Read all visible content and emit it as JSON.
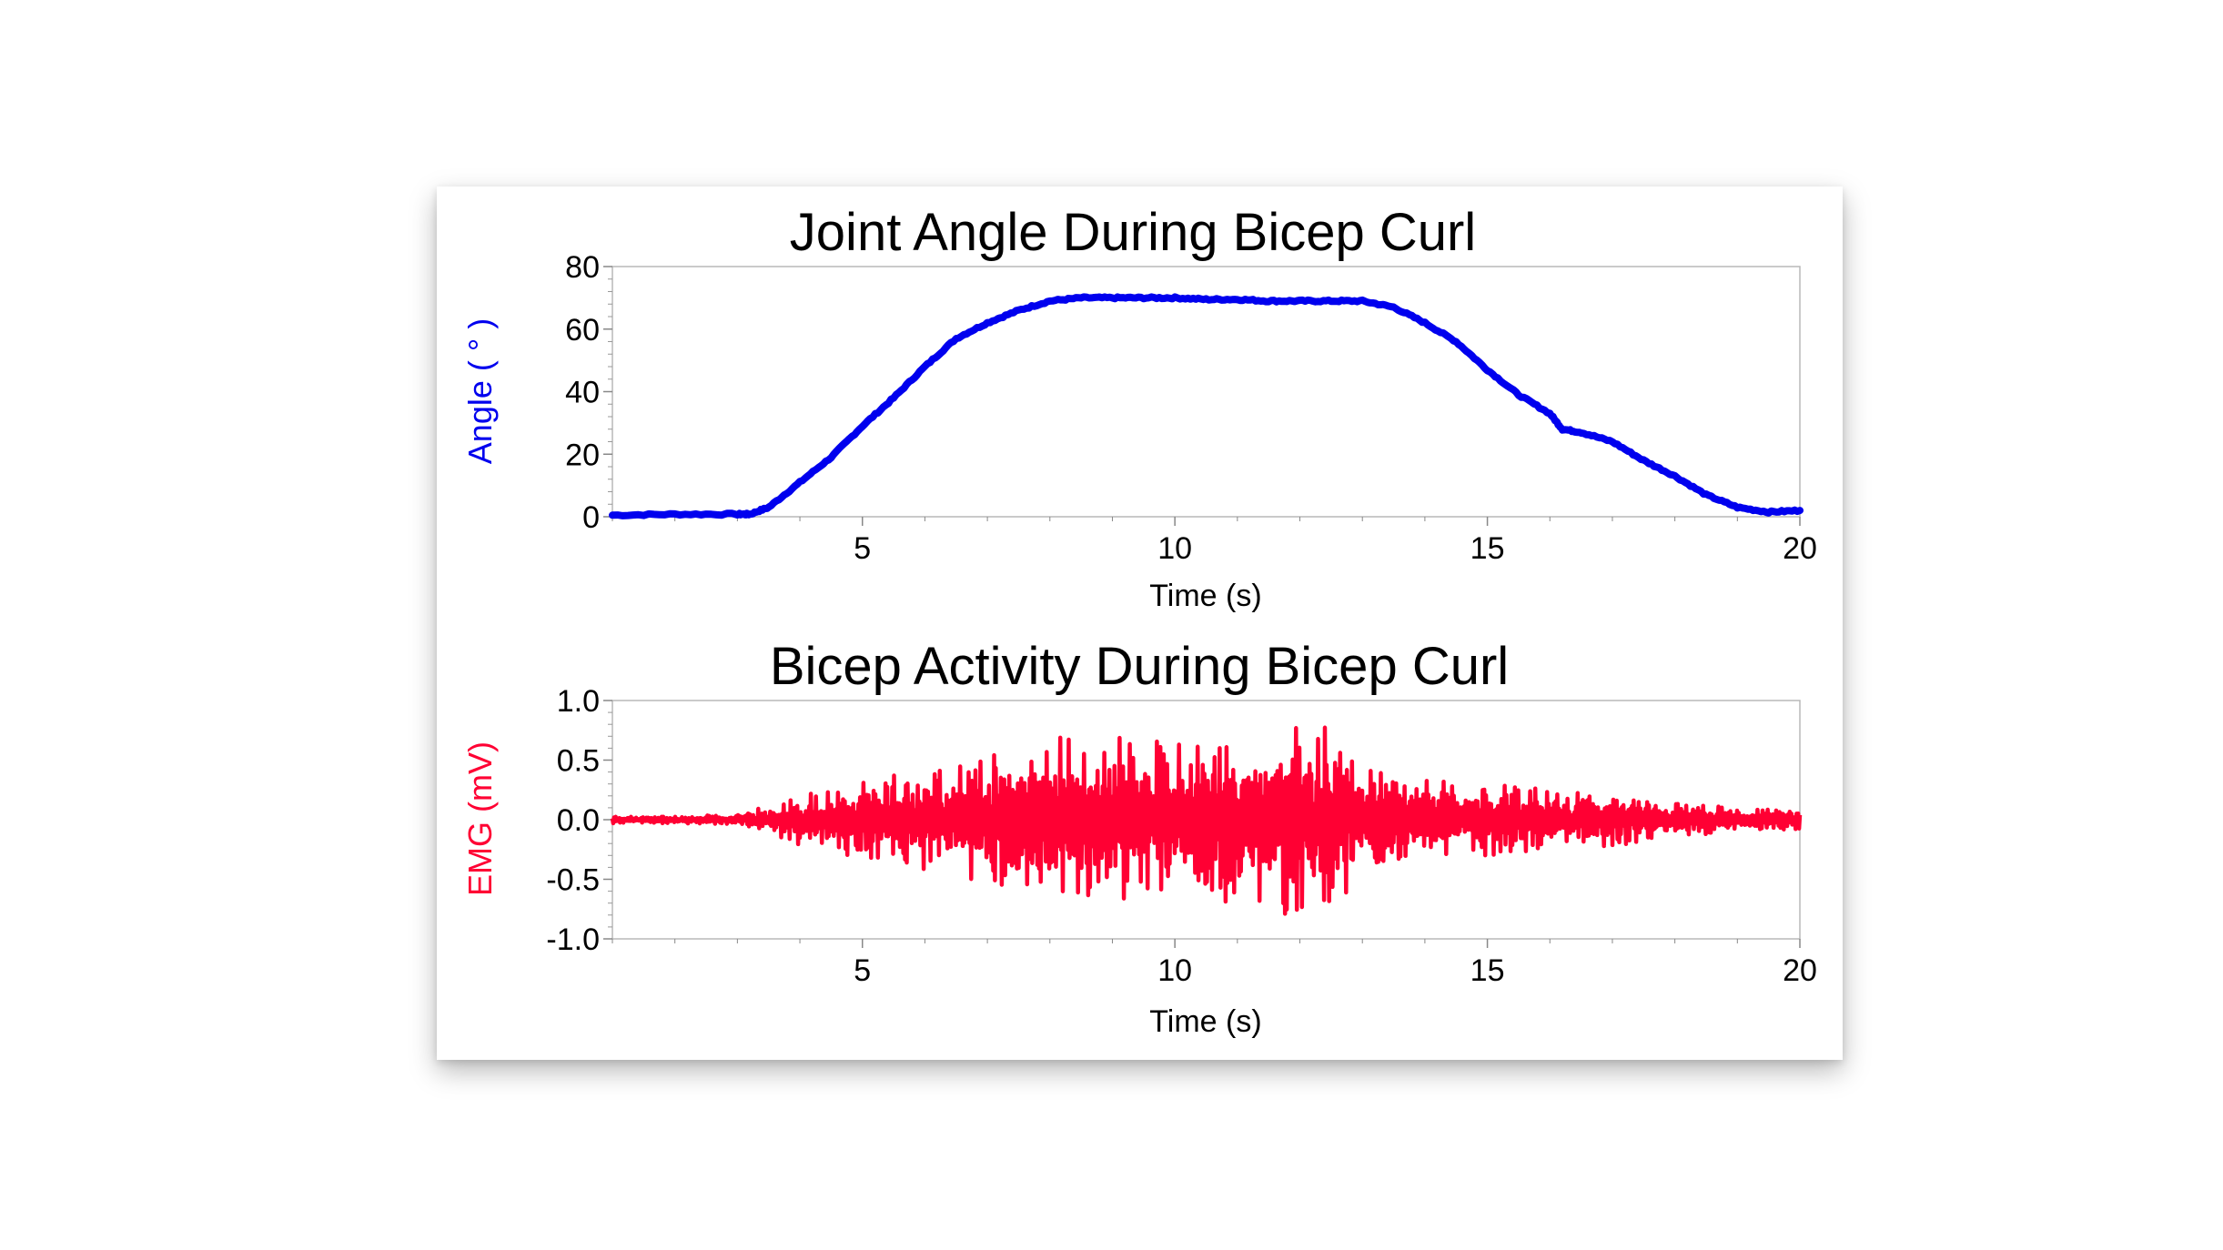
{
  "chart_data": [
    {
      "type": "line",
      "title": "Joint Angle During Bicep Curl",
      "xlabel": "Time (s)",
      "ylabel": "Angle ( ° )",
      "xlim": [
        1,
        20
      ],
      "ylim": [
        0,
        80
      ],
      "x_ticks": [
        5,
        10,
        15,
        20
      ],
      "y_ticks": [
        0,
        20,
        40,
        60,
        80
      ],
      "grid": false,
      "series": [
        {
          "color": "#0000ee",
          "x": [
            1.0,
            2.0,
            3.0,
            3.2,
            3.5,
            4.0,
            4.5,
            5.0,
            5.5,
            6.0,
            6.5,
            7.0,
            7.5,
            8.0,
            8.5,
            9.0,
            9.5,
            10.0,
            10.5,
            11.0,
            11.5,
            12.0,
            12.5,
            13.0,
            13.5,
            14.0,
            14.5,
            15.0,
            15.5,
            16.0,
            16.2,
            16.5,
            17.0,
            17.5,
            18.0,
            18.5,
            19.0,
            19.5,
            20.0
          ],
          "y": [
            0.5,
            0.8,
            0.8,
            0.8,
            3,
            11,
            19,
            29,
            38,
            48,
            57,
            62,
            66,
            69,
            70,
            70,
            70,
            70,
            69.5,
            69.5,
            69,
            69,
            69,
            69,
            67,
            62,
            56,
            47,
            39,
            33,
            28,
            27,
            24,
            18,
            13,
            7,
            3,
            1.5,
            2
          ]
        }
      ]
    },
    {
      "type": "line",
      "title": "Bicep Activity During Bicep Curl",
      "xlabel": "Time (s)",
      "ylabel": "EMG  (mV)",
      "xlim": [
        1,
        20
      ],
      "ylim": [
        -1.0,
        1.0
      ],
      "x_ticks": [
        5,
        10,
        15,
        20
      ],
      "y_ticks": [
        1.0,
        0.5,
        0.0,
        -0.5,
        -1.0
      ],
      "y_tick_labels": [
        "1.0",
        "0.5",
        "0.0",
        "-0.5",
        "-1.0"
      ],
      "grid": false,
      "series": [
        {
          "color": "#ff0033",
          "envelope_time": [
            1,
            2,
            3,
            3.5,
            4,
            5,
            6,
            7,
            8,
            9,
            10,
            11,
            12,
            12.5,
            13,
            14,
            15,
            16,
            17,
            18,
            19,
            20
          ],
          "envelope_amplitude": [
            0.03,
            0.03,
            0.04,
            0.12,
            0.22,
            0.32,
            0.45,
            0.55,
            0.72,
            0.72,
            0.65,
            0.8,
            0.8,
            0.85,
            0.45,
            0.35,
            0.3,
            0.25,
            0.22,
            0.15,
            0.1,
            0.08
          ]
        }
      ]
    }
  ]
}
